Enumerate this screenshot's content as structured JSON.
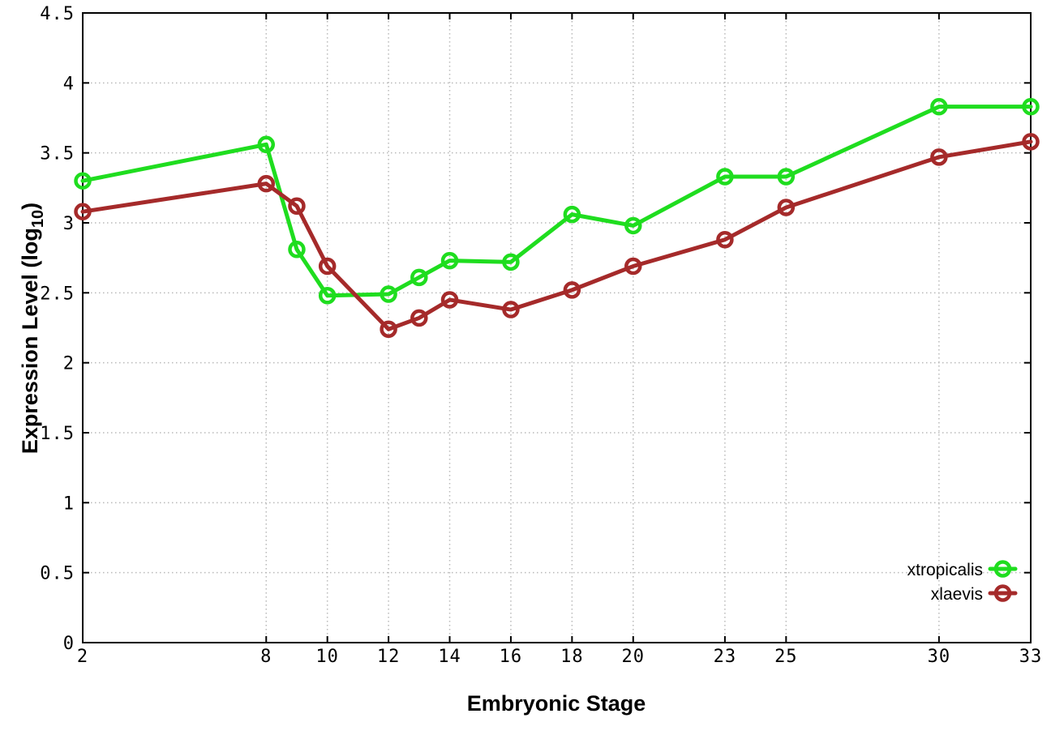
{
  "figure": {
    "background": "#ffffff",
    "border_color": "#000000",
    "grid_color": "#b9b9b9"
  },
  "chart_data": {
    "type": "line",
    "title": "",
    "xlabel": "Embryonic Stage",
    "ylabel": "Expression Level (log10)",
    "ylabel_parts": {
      "pre": "Expression Level (log",
      "sub": "10",
      "post": ")"
    },
    "x": [
      2,
      8,
      9,
      10,
      12,
      13,
      14,
      16,
      18,
      20,
      23,
      25,
      30,
      33
    ],
    "series": [
      {
        "name": "xtropicalis",
        "color": "#1fdd1f",
        "values": [
          3.3,
          3.56,
          2.81,
          2.48,
          2.49,
          2.61,
          2.73,
          2.72,
          3.06,
          2.98,
          3.33,
          3.33,
          3.83,
          3.83
        ]
      },
      {
        "name": "xlaevis",
        "color": "#a52a2a",
        "values": [
          3.08,
          3.28,
          3.12,
          2.69,
          2.24,
          2.32,
          2.45,
          2.38,
          2.52,
          2.69,
          2.88,
          3.11,
          3.47,
          3.58
        ]
      }
    ],
    "xticks": [
      2,
      8,
      10,
      12,
      14,
      16,
      18,
      20,
      23,
      25,
      30,
      33
    ],
    "yticks": [
      "0",
      "0.5",
      "1",
      "1.5",
      "2",
      "2.5",
      "3",
      "3.5",
      "4",
      "4.5"
    ],
    "xlim": [
      2,
      33
    ],
    "ylim": [
      0,
      4.5
    ],
    "grid": true,
    "legend": {
      "position": "inside-bottom-right",
      "entries": [
        "xtropicalis",
        "xlaevis"
      ]
    }
  }
}
